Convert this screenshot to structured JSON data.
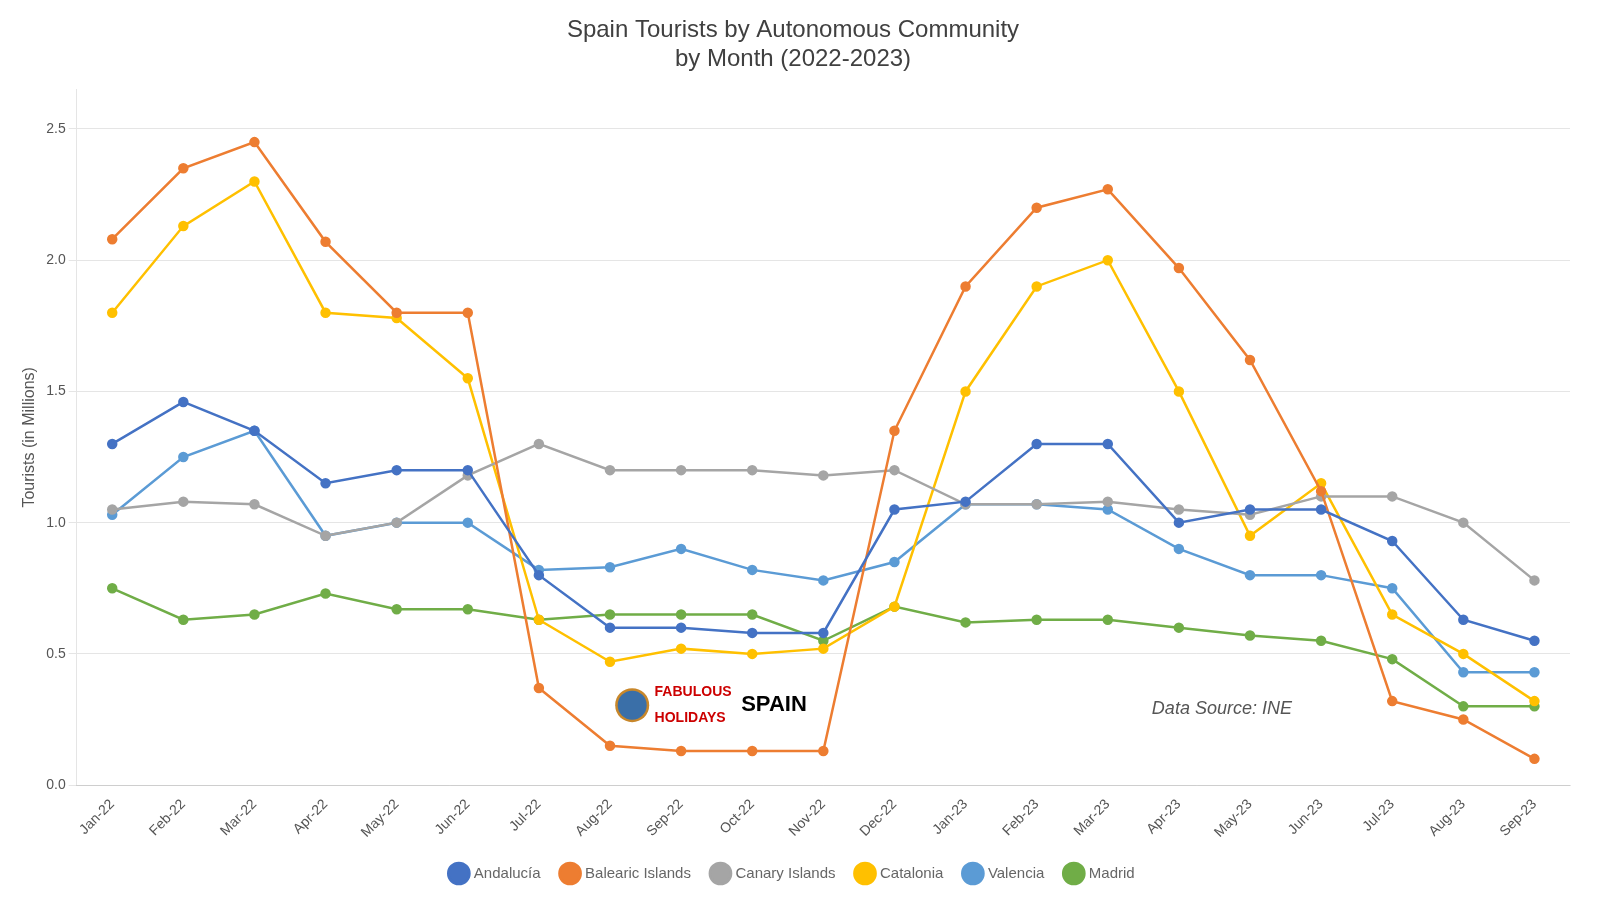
{
  "chart_data": {
    "type": "line",
    "title": "Spain Tourists by Autonomous Community\nby Month (2022-2023)",
    "y_label": "Tourists (in Millions)",
    "categories": [
      "Jan-22",
      "Feb-22",
      "Mar-22",
      "Apr-22",
      "May-22",
      "Jun-22",
      "Jul-22",
      "Aug-22",
      "Sep-22",
      "Oct-22",
      "Nov-22",
      "Dec-22",
      "Jan-23",
      "Feb-23",
      "Mar-23",
      "Apr-23",
      "May-23",
      "Jun-23",
      "Jul-23",
      "Aug-23",
      "Sep-23"
    ],
    "series": [
      {
        "name": "Andalucía",
        "color": "#4472C4",
        "values": [
          1.3,
          1.46,
          1.35,
          1.15,
          1.2,
          1.2,
          0.8,
          0.6,
          0.6,
          0.58,
          0.58,
          1.05,
          1.08,
          1.3,
          1.3,
          1.0,
          1.05,
          1.05,
          0.93,
          0.63,
          0.55
        ]
      },
      {
        "name": "Balearic Islands",
        "color": "#ED7D31",
        "values": [
          2.08,
          2.35,
          2.45,
          2.07,
          1.8,
          1.8,
          0.37,
          0.15,
          0.13,
          0.13,
          0.13,
          1.35,
          1.9,
          2.2,
          2.27,
          1.97,
          1.62,
          1.12,
          0.32,
          0.25,
          0.1
        ]
      },
      {
        "name": "Canary Islands",
        "color": "#A5A5A5",
        "values": [
          1.05,
          1.08,
          1.07,
          0.95,
          1.0,
          1.18,
          1.3,
          1.2,
          1.2,
          1.2,
          1.18,
          1.2,
          1.07,
          1.07,
          1.08,
          1.05,
          1.03,
          1.1,
          1.1,
          1.0,
          0.78
        ]
      },
      {
        "name": "Catalonia",
        "color": "#FFC000",
        "values": [
          1.8,
          2.13,
          2.3,
          1.8,
          1.78,
          1.55,
          0.63,
          0.47,
          0.52,
          0.5,
          0.52,
          0.68,
          1.5,
          1.9,
          2.0,
          1.5,
          0.95,
          1.15,
          0.65,
          0.5,
          0.32
        ]
      },
      {
        "name": "Valencia",
        "color": "#5B9BD5",
        "values": [
          1.03,
          1.25,
          1.35,
          0.95,
          1.0,
          1.0,
          0.82,
          0.83,
          0.9,
          0.82,
          0.78,
          0.85,
          1.07,
          1.07,
          1.05,
          0.9,
          0.8,
          0.8,
          0.75,
          0.43,
          0.43
        ]
      },
      {
        "name": "Madrid",
        "color": "#70AD47",
        "values": [
          0.75,
          0.63,
          0.65,
          0.73,
          0.67,
          0.67,
          0.63,
          0.65,
          0.65,
          0.65,
          0.55,
          0.68,
          0.62,
          0.63,
          0.63,
          0.6,
          0.57,
          0.55,
          0.48,
          0.3,
          0.3
        ]
      }
    ],
    "ylim": [
      0.0,
      2.65
    ],
    "yticks": [
      {
        "value": 0,
        "label": "0.0"
      },
      0.5,
      {
        "value": 1,
        "label": "1.0"
      },
      1.5,
      {
        "value": 2,
        "label": "2.0"
      },
      2.5
    ],
    "grid": "y",
    "legend": "bottom",
    "marker": "circle",
    "annotations": [
      {
        "text": "Data Source: INE"
      },
      {
        "text": "FABULOUS",
        "color": "#CC0000"
      },
      {
        "text": "HOLIDAYS",
        "color": "#CC0000"
      },
      {
        "text": "SPAIN",
        "color": "#000000"
      }
    ]
  }
}
